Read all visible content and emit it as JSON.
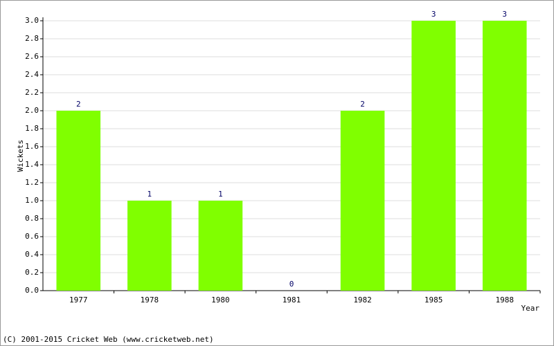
{
  "chart_data": {
    "type": "bar",
    "categories": [
      "1977",
      "1978",
      "1980",
      "1981",
      "1982",
      "1985",
      "1988"
    ],
    "values": [
      2,
      1,
      1,
      0,
      2,
      3,
      3
    ],
    "color": "#80ff00",
    "y_label": "Wickets",
    "x_label": "Year",
    "ylim": [
      0,
      3
    ],
    "yticks": [
      {
        "value": 0,
        "label": "0.0"
      },
      {
        "value": 0.2,
        "label": "0.2"
      },
      {
        "value": 0.4,
        "label": "0.4"
      },
      {
        "value": 0.6,
        "label": "0.6"
      },
      {
        "value": 0.8,
        "label": "0.8"
      },
      {
        "value": 1,
        "label": "1.0"
      },
      {
        "value": 1.2,
        "label": "1.2"
      },
      {
        "value": 1.4,
        "label": "1.4"
      },
      {
        "value": 1.6,
        "label": "1.6"
      },
      {
        "value": 1.8,
        "label": "1.8"
      },
      {
        "value": 2,
        "label": "2.0"
      },
      {
        "value": 2.2,
        "label": "2.2"
      },
      {
        "value": 2.4,
        "label": "2.4"
      },
      {
        "value": 2.6,
        "label": "2.6"
      },
      {
        "value": 2.8,
        "label": "2.8"
      },
      {
        "value": 3,
        "label": "3.0"
      }
    ],
    "grid": true,
    "footer": "(C) 2001-2015 Cricket Web (www.cricketweb.net)"
  }
}
